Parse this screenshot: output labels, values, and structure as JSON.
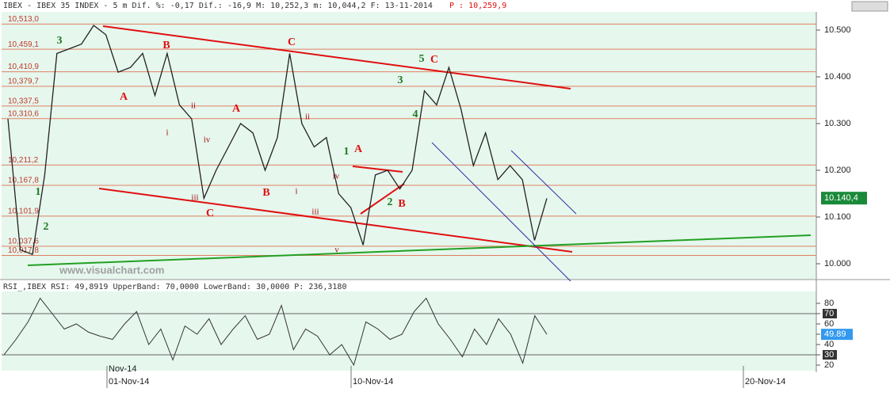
{
  "header": {
    "title": "IBEX - IBEX 35 INDEX - 5 m Dif. %: -0,17 Dif.: -16,9 M: 10,252,3 m: 10,044,2 F: 13-11-2014",
    "price": "P : 10,259,9"
  },
  "price_panel": {
    "levels": [
      {
        "value": 10.513,
        "label": "10,513,0"
      },
      {
        "value": 10.4591,
        "label": "10,459,1"
      },
      {
        "value": 10.4109,
        "label": "10,410,9"
      },
      {
        "value": 10.3797,
        "label": "10,379,7"
      },
      {
        "value": 10.3375,
        "label": "10,337,5"
      },
      {
        "value": 10.3106,
        "label": "10,310,6"
      },
      {
        "value": 10.2112,
        "label": "10,211,2"
      },
      {
        "value": 10.1678,
        "label": "10,167,8"
      },
      {
        "value": 10.1019,
        "label": "10,101,9"
      },
      {
        "value": 10.0376,
        "label": "10,037,6"
      },
      {
        "value": 10.0178,
        "label": "10,017,8"
      }
    ],
    "axis_ticks": [
      {
        "value": 10.5,
        "label": "10.500"
      },
      {
        "value": 10.4,
        "label": "10.400"
      },
      {
        "value": 10.3,
        "label": "10.300"
      },
      {
        "value": 10.2,
        "label": "10.200"
      },
      {
        "value": 10.1,
        "label": "10.100"
      },
      {
        "value": 10.0,
        "label": "10.000"
      }
    ],
    "last": {
      "value": 10.1404,
      "label": "10.140,4"
    },
    "values": [
      10.31,
      10.03,
      10.02,
      10.19,
      10.45,
      10.46,
      10.47,
      10.51,
      10.49,
      10.41,
      10.42,
      10.45,
      10.36,
      10.45,
      10.34,
      10.31,
      10.14,
      10.2,
      10.25,
      10.3,
      10.28,
      10.2,
      10.27,
      10.45,
      10.3,
      10.25,
      10.27,
      10.15,
      10.12,
      10.04,
      10.19,
      10.2,
      10.16,
      10.2,
      10.37,
      10.34,
      10.42,
      10.33,
      10.21,
      10.28,
      10.18,
      10.21,
      10.18,
      10.05,
      10.14
    ],
    "annotations": [
      "3",
      "B",
      "C",
      "5",
      "C",
      "A",
      "ii",
      "A",
      "3",
      "4",
      "i",
      "ii",
      "iv",
      "1",
      "A",
      "1",
      "2",
      "iii",
      "C",
      "B",
      "i",
      "iv",
      "iii",
      "2",
      "B",
      "v"
    ],
    "watermark": "www.visualchart.com"
  },
  "rsi_panel": {
    "title": "RSI_,IBEX RSI: 49,8919 UpperBand: 70,0000 LowerBand: 30,0000 P: 236,3180",
    "ticks": [
      80,
      70,
      60,
      50,
      40,
      30,
      20
    ],
    "ylim": [
      20,
      80
    ],
    "band_ticks": [
      70,
      30
    ],
    "last": {
      "value": 49.8919,
      "label": "49.89"
    },
    "values": [
      30,
      45,
      62,
      85,
      70,
      55,
      60,
      52,
      48,
      45,
      60,
      72,
      40,
      55,
      25,
      58,
      50,
      65,
      40,
      55,
      68,
      45,
      50,
      78,
      35,
      55,
      48,
      30,
      40,
      20,
      62,
      55,
      45,
      50,
      72,
      85,
      60,
      45,
      28,
      55,
      40,
      65,
      50,
      22,
      68,
      49.89
    ]
  },
  "dates": [
    "Nov-14",
    "01-Nov-14",
    "10-Nov-14",
    "20-Nov-14"
  ]
}
